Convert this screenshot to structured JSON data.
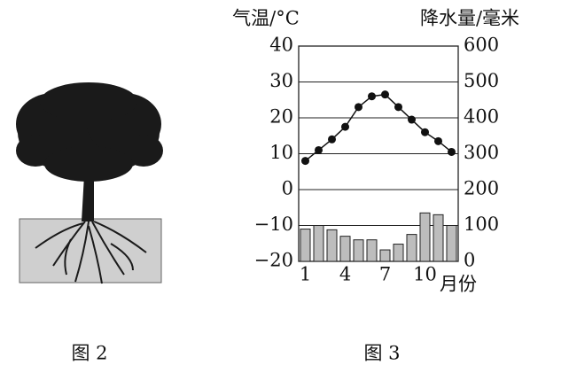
{
  "chart_data": {
    "type": "climate",
    "ylabel": "气温/°C",
    "y2label": "降水量/毫米",
    "xlabel": "月份",
    "categories": [
      "1",
      null,
      null,
      "4",
      null,
      null,
      "7",
      null,
      null,
      "10",
      null,
      null
    ],
    "ylim": [
      -20,
      40
    ],
    "yticks": [
      {
        "value": -20,
        "label": "−20"
      },
      {
        "value": -10,
        "label": "−10"
      },
      0,
      10,
      20,
      30,
      40
    ],
    "y2lim": [
      0,
      600
    ],
    "y2ticks": [
      0,
      100,
      200,
      300,
      400,
      500,
      600
    ],
    "grid": true,
    "series": [
      {
        "type": "bar",
        "axis": "y2",
        "color": "#bdbdbd",
        "values": [
          90,
          100,
          88,
          70,
          60,
          60,
          32,
          48,
          75,
          135,
          130,
          100
        ]
      },
      {
        "type": "line",
        "axis": "y",
        "color": "#111111",
        "values": [
          8,
          11,
          14,
          17.5,
          23,
          26,
          26.5,
          23,
          19.5,
          16,
          13.5,
          10.5
        ]
      }
    ]
  },
  "captions": [
    "图 2",
    "图 3"
  ]
}
